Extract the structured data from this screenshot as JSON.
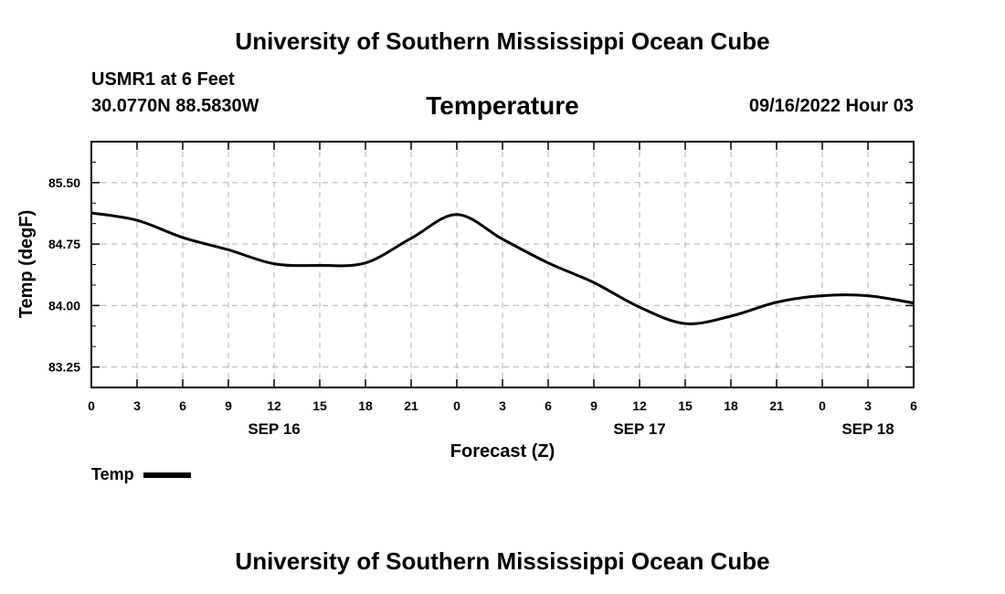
{
  "header": {
    "title_top": "University of Southern Mississippi Ocean Cube",
    "station": "USMR1 at 6 Feet",
    "coords": "30.0770N  88.5830W",
    "datetime": "09/16/2022 Hour 03",
    "title_bottom": "University of Southern Mississippi Ocean Cube"
  },
  "legend": {
    "label": "Temp",
    "color": "#000000"
  },
  "chart_data": {
    "type": "line",
    "title": "Temperature",
    "xlabel": "Forecast (Z)",
    "ylabel": "Temp (degF)",
    "xlim": [
      0,
      54
    ],
    "ylim": [
      83.0,
      86.0
    ],
    "grid": true,
    "x_ticks": [
      0,
      3,
      6,
      9,
      12,
      15,
      18,
      21,
      24,
      27,
      30,
      33,
      36,
      39,
      42,
      45,
      48,
      51,
      54
    ],
    "x_tick_labels": [
      "0",
      "3",
      "6",
      "9",
      "12",
      "15",
      "18",
      "21",
      "0",
      "3",
      "6",
      "9",
      "12",
      "15",
      "18",
      "21",
      "0",
      "3",
      "6"
    ],
    "date_labels": [
      {
        "label": "SEP 16",
        "x": 12
      },
      {
        "label": "SEP 17",
        "x": 36
      },
      {
        "label": "SEP 18",
        "x": 51
      }
    ],
    "y_ticks": [
      83.25,
      84.0,
      84.75,
      85.5
    ],
    "y_tick_labels": [
      "83.25",
      "84.00",
      "84.75",
      "85.50"
    ],
    "series": [
      {
        "name": "Temp",
        "color": "#000000",
        "x": [
          0,
          3,
          6,
          9,
          12,
          15,
          18,
          21,
          24,
          27,
          30,
          33,
          36,
          39,
          42,
          45,
          48,
          51,
          54
        ],
        "values": [
          85.13,
          85.04,
          84.83,
          84.68,
          84.51,
          84.49,
          84.52,
          84.82,
          85.11,
          84.81,
          84.52,
          84.28,
          83.98,
          83.78,
          83.87,
          84.04,
          84.12,
          84.12,
          84.03
        ]
      }
    ]
  }
}
